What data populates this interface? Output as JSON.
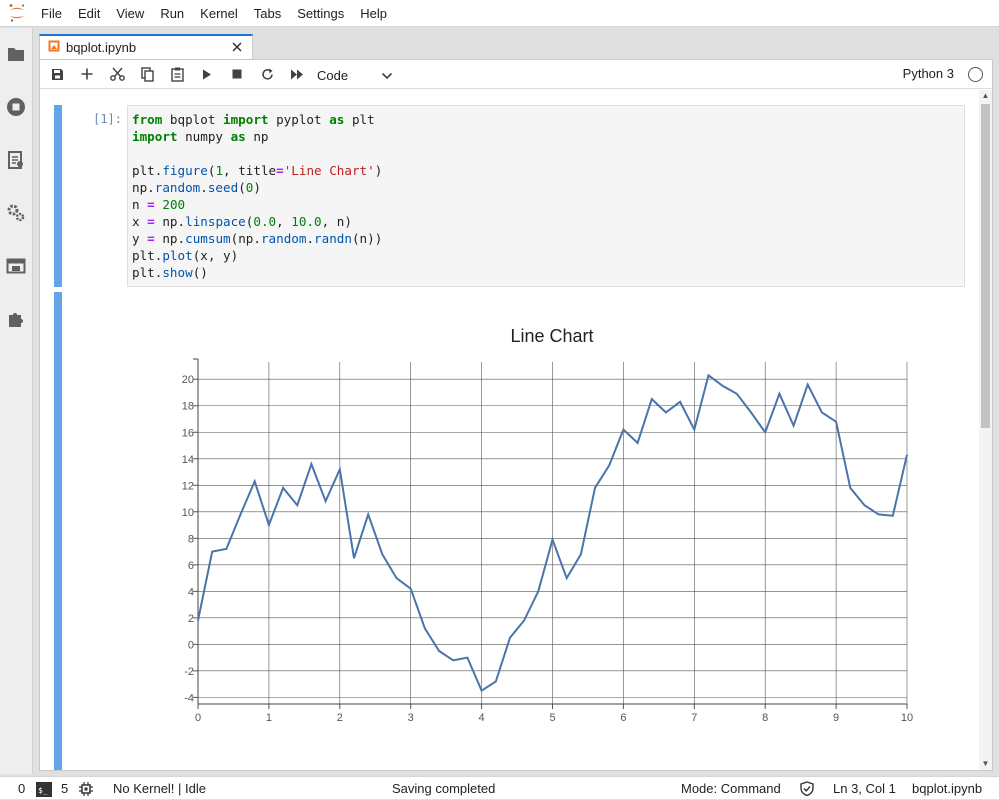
{
  "menubar": {
    "logo": "jupyter-logo-icon",
    "items": [
      "File",
      "Edit",
      "View",
      "Run",
      "Kernel",
      "Tabs",
      "Settings",
      "Help"
    ]
  },
  "sidebar": {
    "icons": [
      "folder-icon",
      "running-icon",
      "commands-icon",
      "property-inspector-icon",
      "tabs-icon",
      "extension-icon"
    ]
  },
  "tab": {
    "label": "bqplot.ipynb",
    "icon": "notebook-icon"
  },
  "toolbar": {
    "buttons": [
      "save-icon",
      "add-cell-icon",
      "cut-icon",
      "copy-icon",
      "paste-icon",
      "run-icon",
      "stop-icon",
      "restart-icon",
      "run-all-icon"
    ],
    "cell_type": "Code",
    "kernel_name": "Python 3"
  },
  "cell": {
    "prompt": "[1]:",
    "code_lines": [
      "from bqplot import pyplot as plt",
      "import numpy as np",
      "",
      "plt.figure(1, title='Line Chart')",
      "np.random.seed(0)",
      "n = 200",
      "x = np.linspace(0.0, 10.0, n)",
      "y = np.cumsum(np.random.randn(n))",
      "plt.plot(x, y)",
      "plt.show()"
    ]
  },
  "chart_data": {
    "type": "line",
    "title": "Line Chart",
    "xlabel": "",
    "ylabel": "",
    "xlim": [
      0,
      10
    ],
    "ylim": [
      -4.5,
      21.3
    ],
    "xticks": [
      "0",
      "1",
      "2",
      "3",
      "4",
      "5",
      "6",
      "7",
      "8",
      "9",
      "10"
    ],
    "yticks": [
      "-4",
      "-2",
      "0",
      "2",
      "4",
      "6",
      "8",
      "10",
      "12",
      "14",
      "16",
      "18",
      "20"
    ],
    "grid": true,
    "color": "#4a74aa",
    "x": [
      0,
      0.2,
      0.4,
      0.6,
      0.8,
      1.0,
      1.2,
      1.4,
      1.6,
      1.8,
      2.0,
      2.2,
      2.4,
      2.6,
      2.8,
      3.0,
      3.2,
      3.4,
      3.6,
      3.8,
      4.0,
      4.2,
      4.4,
      4.6,
      4.8,
      5.0,
      5.2,
      5.4,
      5.6,
      5.8,
      6.0,
      6.2,
      6.4,
      6.6,
      6.8,
      7.0,
      7.2,
      7.4,
      7.6,
      7.8,
      8.0,
      8.2,
      8.4,
      8.6,
      8.8,
      9.0,
      9.2,
      9.4,
      9.6,
      9.8,
      10.0
    ],
    "y": [
      1.8,
      7.0,
      7.2,
      9.8,
      12.3,
      9.0,
      11.8,
      10.5,
      13.6,
      10.8,
      13.2,
      6.5,
      9.8,
      6.8,
      5.0,
      4.2,
      1.2,
      -0.5,
      -1.2,
      -1.0,
      -3.5,
      -2.8,
      0.5,
      1.8,
      4.0,
      7.9,
      5.0,
      6.8,
      11.8,
      13.5,
      16.2,
      15.2,
      18.5,
      17.5,
      18.3,
      16.2,
      20.3,
      19.5,
      18.9,
      17.5,
      16.0,
      18.9,
      16.5,
      19.6,
      17.5,
      16.8,
      11.8,
      10.5,
      9.8,
      9.7,
      14.3
    ]
  },
  "statusbar": {
    "terminals": "0",
    "kernels": "5",
    "kernel_state": "No Kernel! | Idle",
    "save_state": "Saving completed",
    "mode": "Mode: Command",
    "cursor": "Ln 3, Col 1",
    "file": "bqplot.ipynb"
  }
}
